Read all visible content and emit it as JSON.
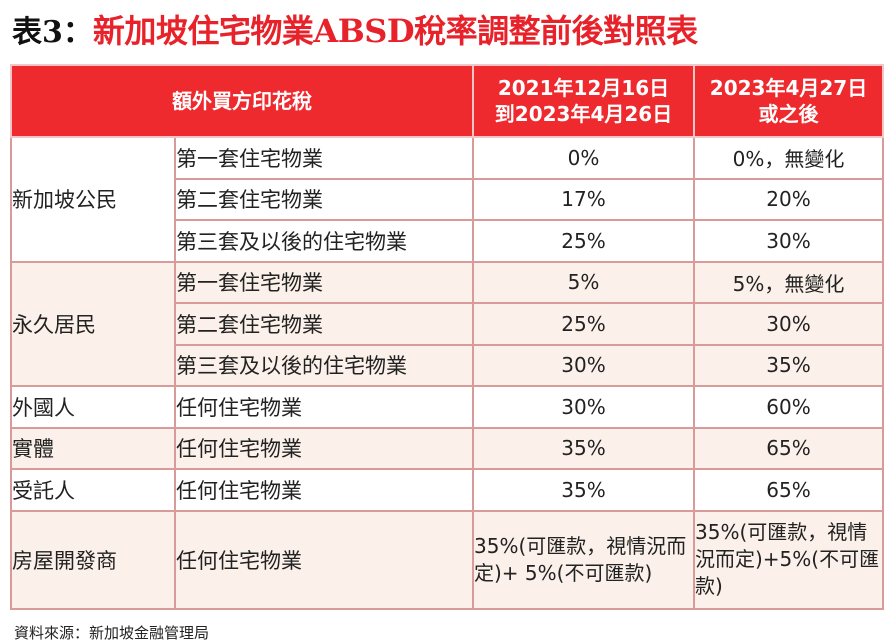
{
  "title": {
    "prefix": "表3：",
    "main": "新加坡住宅物業ABSD稅率調整前後對照表"
  },
  "table": {
    "header": {
      "col1": "額外買方印花稅",
      "col2_line1": "2021年12月16日",
      "col2_line2": "到2023年4月26日",
      "col3_line1": "2023年4月27日",
      "col3_line2": "或之後"
    },
    "groups": [
      {
        "name": "新加坡公民",
        "rows": [
          {
            "type": "第一套住宅物業",
            "before": "0%",
            "after": "0%，無變化"
          },
          {
            "type": "第二套住宅物業",
            "before": "17%",
            "after": "20%"
          },
          {
            "type": "第三套及以後的住宅物業",
            "before": "25%",
            "after": "30%"
          }
        ]
      },
      {
        "name": "永久居民",
        "rows": [
          {
            "type": "第一套住宅物業",
            "before": "5%",
            "after": "5%，無變化"
          },
          {
            "type": "第二套住宅物業",
            "before": "25%",
            "after": "30%"
          },
          {
            "type": "第三套及以後的住宅物業",
            "before": "30%",
            "after": "35%"
          }
        ]
      },
      {
        "name": "外國人",
        "rows": [
          {
            "type": "任何住宅物業",
            "before": "30%",
            "after": "60%"
          }
        ]
      },
      {
        "name": "實體",
        "rows": [
          {
            "type": "任何住宅物業",
            "before": "35%",
            "after": "65%"
          }
        ]
      },
      {
        "name": "受託人",
        "rows": [
          {
            "type": "任何住宅物業",
            "before": "35%",
            "after": "65%"
          }
        ]
      },
      {
        "name": "房屋開發商",
        "rows": [
          {
            "type": "任何住宅物業",
            "before": "35%(可匯款，視情況而定)+ 5%(不可匯款)",
            "after": "35%(可匯款，視情況而定)+5%(不可匯款)"
          }
        ]
      }
    ]
  },
  "source": "資料來源：新加坡金融管理局"
}
